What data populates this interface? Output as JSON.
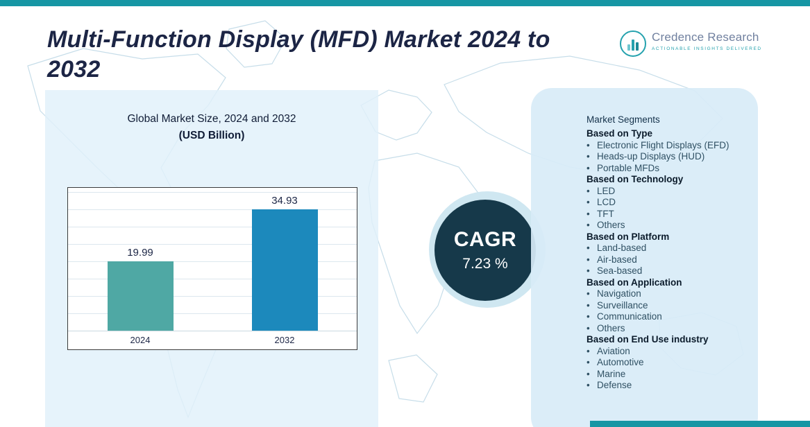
{
  "page": {
    "title": "Multi-Function Display (MFD) Market 2024 to 2032"
  },
  "logo": {
    "name": "Credence Research",
    "tagline": "Actionable Insights Delivered"
  },
  "chart_data": {
    "type": "bar",
    "title": "Global Market Size, 2024 and 2032",
    "subtitle": "(USD Billion)",
    "categories": [
      "2024",
      "2032"
    ],
    "values": [
      19.99,
      34.93
    ],
    "ylim": [
      0,
      40
    ],
    "grid": true,
    "legend": false,
    "bar_colors": [
      "#4fa8a4",
      "#1c89bc"
    ]
  },
  "cagr": {
    "label": "CAGR",
    "value": "7.23 %"
  },
  "segments": {
    "title": "Market Segments",
    "sections": [
      {
        "header": "Based on Type",
        "items": [
          "Electronic Flight Displays (EFD)",
          "Heads-up Displays (HUD)",
          "Portable MFDs"
        ]
      },
      {
        "header": "Based on Technology",
        "items": [
          "LED",
          "LCD",
          "TFT",
          "Others"
        ]
      },
      {
        "header": "Based on Platform",
        "items": [
          "Land-based",
          "Air-based",
          "Sea-based"
        ]
      },
      {
        "header": "Based on Application",
        "items": [
          "Navigation",
          "Surveillance",
          "Communication",
          "Others"
        ]
      },
      {
        "header": "Based on End Use industry",
        "items": [
          "Aviation",
          "Automotive",
          "Marine",
          "Defense"
        ]
      }
    ]
  },
  "colors": {
    "accent_teal": "#1696a4",
    "panel_blue": "#deeff8",
    "dark_circle": "#16394a",
    "title_navy": "#1c2545"
  }
}
